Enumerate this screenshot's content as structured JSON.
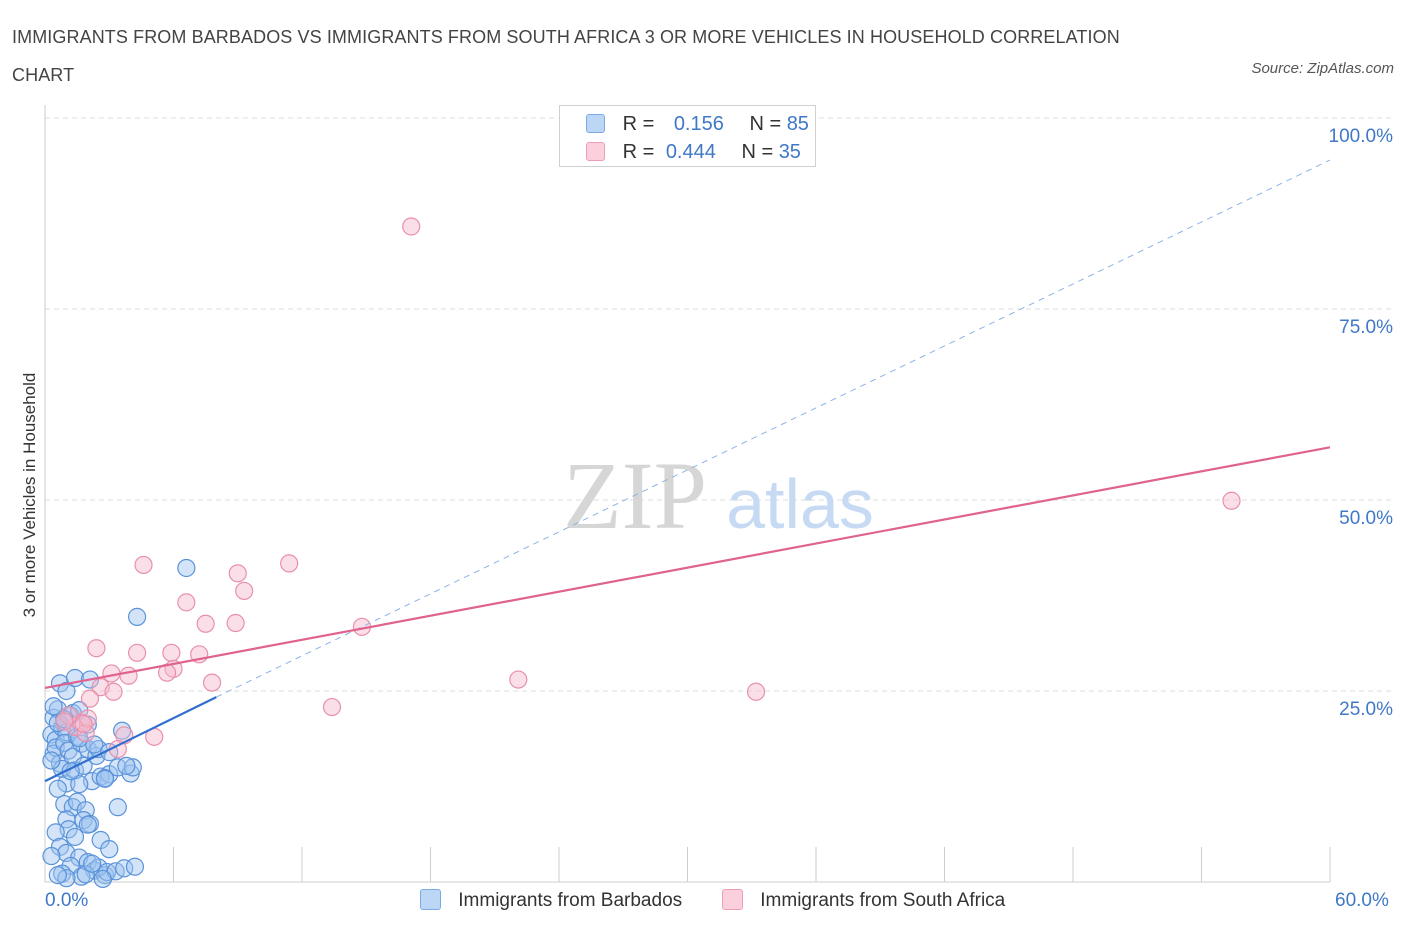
{
  "title": "IMMIGRANTS FROM BARBADOS VS IMMIGRANTS FROM SOUTH AFRICA 3 OR MORE VEHICLES IN HOUSEHOLD CORRELATION CHART",
  "source": "Source: ZipAtlas.com",
  "watermark": {
    "zip": "ZIP",
    "atlas": "atlas"
  },
  "legend": {
    "rows": [
      {
        "r_label": "R =",
        "r_value": "0.156",
        "n_label": "N =",
        "n_value": "85"
      },
      {
        "r_label": "R =",
        "r_value": "0.444",
        "n_label": "N =",
        "n_value": "35"
      }
    ]
  },
  "colors": {
    "barbados_fill": "#9ec3f0",
    "barbados_stroke": "#5b93d9",
    "barbados_line": "#2f6fd0",
    "southafrica_fill": "#f7b9cb",
    "southafrica_stroke": "#e890ab",
    "southafrica_line": "#e0628f",
    "axis_label": "#3f78c7",
    "grid": "#dddddd"
  },
  "chart_data": {
    "type": "scatter",
    "title": "IMMIGRANTS FROM BARBADOS VS IMMIGRANTS FROM SOUTH AFRICA 3 OR MORE VEHICLES IN HOUSEHOLD CORRELATION CHART",
    "xlabel": "",
    "ylabel": "3 or more Vehicles in Household",
    "xlim": [
      0,
      60
    ],
    "ylim": [
      0,
      100
    ],
    "x_tick_labels": [
      "0.0%",
      "60.0%"
    ],
    "y_tick_labels": [
      "100.0%",
      "75.0%",
      "50.0%",
      "25.0%"
    ],
    "y_ticks": [
      100,
      75,
      50,
      25
    ],
    "x_ticks": [
      0,
      6,
      12,
      18,
      24,
      30,
      36,
      42,
      48,
      54,
      60
    ],
    "series": [
      {
        "name": "Immigrants from Barbados",
        "R": 0.156,
        "N": 85,
        "trend": {
          "x": [
            0,
            8
          ],
          "y": [
            13.2,
            24.2
          ]
        },
        "trend_extension": {
          "x": [
            8,
            60
          ],
          "y": [
            24.2,
            94.5
          ]
        },
        "points": [
          [
            0.3,
            19.3
          ],
          [
            0.4,
            21.5
          ],
          [
            0.5,
            18.6
          ],
          [
            0.6,
            22.6
          ],
          [
            0.4,
            16.8
          ],
          [
            0.8,
            20.2
          ],
          [
            1.0,
            19.6
          ],
          [
            0.5,
            17.6
          ],
          [
            1.2,
            21.8
          ],
          [
            0.7,
            15.5
          ],
          [
            0.9,
            18.2
          ],
          [
            1.1,
            17.2
          ],
          [
            0.6,
            20.8
          ],
          [
            1.3,
            16.4
          ],
          [
            0.8,
            14.8
          ],
          [
            1.5,
            19.0
          ],
          [
            0.3,
            15.9
          ],
          [
            1.0,
            12.9
          ],
          [
            1.7,
            18.1
          ],
          [
            2.0,
            17.4
          ],
          [
            1.4,
            14.6
          ],
          [
            2.2,
            13.2
          ],
          [
            1.8,
            15.2
          ],
          [
            2.6,
            13.8
          ],
          [
            2.4,
            16.5
          ],
          [
            3.0,
            14.1
          ],
          [
            3.4,
            15.0
          ],
          [
            2.8,
            13.6
          ],
          [
            1.6,
            12.8
          ],
          [
            0.6,
            12.2
          ],
          [
            0.9,
            10.2
          ],
          [
            1.3,
            9.8
          ],
          [
            1.0,
            8.2
          ],
          [
            1.5,
            10.5
          ],
          [
            1.9,
            9.4
          ],
          [
            1.1,
            6.9
          ],
          [
            1.8,
            8.1
          ],
          [
            0.5,
            6.5
          ],
          [
            2.1,
            7.6
          ],
          [
            1.4,
            5.9
          ],
          [
            0.7,
            4.6
          ],
          [
            2.6,
            5.5
          ],
          [
            1.0,
            3.8
          ],
          [
            1.6,
            3.2
          ],
          [
            2.0,
            2.6
          ],
          [
            0.3,
            3.4
          ],
          [
            1.2,
            2.1
          ],
          [
            2.3,
            1.5
          ],
          [
            2.8,
            0.9
          ],
          [
            1.7,
            0.7
          ],
          [
            0.8,
            1.1
          ],
          [
            2.5,
            1.9
          ],
          [
            1.0,
            0.5
          ],
          [
            2.9,
            1.3
          ],
          [
            3.3,
            1.4
          ],
          [
            1.9,
            1.0
          ],
          [
            2.7,
            0.4
          ],
          [
            0.6,
            0.9
          ],
          [
            3.0,
            4.3
          ],
          [
            2.2,
            2.4
          ],
          [
            0.7,
            26.0
          ],
          [
            1.0,
            25.0
          ],
          [
            1.3,
            22.1
          ],
          [
            1.6,
            22.5
          ],
          [
            2.0,
            20.6
          ],
          [
            1.4,
            26.7
          ],
          [
            2.5,
            17.4
          ],
          [
            2.1,
            26.5
          ],
          [
            4.0,
            14.2
          ],
          [
            2.3,
            18.0
          ],
          [
            3.0,
            17.0
          ],
          [
            3.6,
            19.8
          ],
          [
            4.1,
            15.0
          ],
          [
            3.8,
            15.2
          ],
          [
            0.4,
            23.0
          ],
          [
            0.9,
            21.3
          ],
          [
            1.2,
            14.5
          ],
          [
            2.0,
            7.5
          ],
          [
            3.7,
            1.8
          ],
          [
            2.8,
            13.5
          ],
          [
            4.2,
            2.0
          ],
          [
            3.4,
            9.8
          ],
          [
            4.3,
            34.7
          ],
          [
            6.6,
            41.1
          ],
          [
            1.6,
            18.8
          ]
        ]
      },
      {
        "name": "Immigrants from South Africa",
        "R": 0.444,
        "N": 35,
        "trend": {
          "x": [
            0,
            60
          ],
          "y": [
            25.4,
            56.9
          ]
        },
        "points": [
          [
            17.1,
            85.8
          ],
          [
            55.4,
            49.9
          ],
          [
            4.6,
            41.5
          ],
          [
            11.4,
            41.7
          ],
          [
            9.0,
            40.4
          ],
          [
            9.3,
            38.1
          ],
          [
            6.6,
            36.6
          ],
          [
            7.5,
            33.8
          ],
          [
            8.9,
            33.9
          ],
          [
            14.8,
            33.4
          ],
          [
            2.4,
            30.6
          ],
          [
            4.3,
            30.0
          ],
          [
            5.9,
            30.0
          ],
          [
            7.2,
            29.8
          ],
          [
            6.0,
            27.9
          ],
          [
            5.7,
            27.4
          ],
          [
            3.1,
            27.3
          ],
          [
            3.9,
            27.0
          ],
          [
            2.6,
            25.5
          ],
          [
            3.2,
            24.9
          ],
          [
            7.8,
            26.1
          ],
          [
            22.1,
            26.5
          ],
          [
            33.2,
            24.9
          ],
          [
            2.1,
            24.0
          ],
          [
            13.4,
            22.9
          ],
          [
            1.7,
            20.9
          ],
          [
            1.4,
            20.3
          ],
          [
            1.1,
            21.8
          ],
          [
            1.9,
            19.5
          ],
          [
            3.7,
            19.2
          ],
          [
            5.1,
            19.0
          ],
          [
            3.4,
            17.4
          ],
          [
            2.0,
            21.4
          ],
          [
            0.9,
            21.0
          ],
          [
            1.8,
            20.7
          ]
        ]
      }
    ]
  },
  "bottom_legend": {
    "items": [
      {
        "label": "Immigrants from Barbados"
      },
      {
        "label": "Immigrants from South Africa"
      }
    ]
  }
}
